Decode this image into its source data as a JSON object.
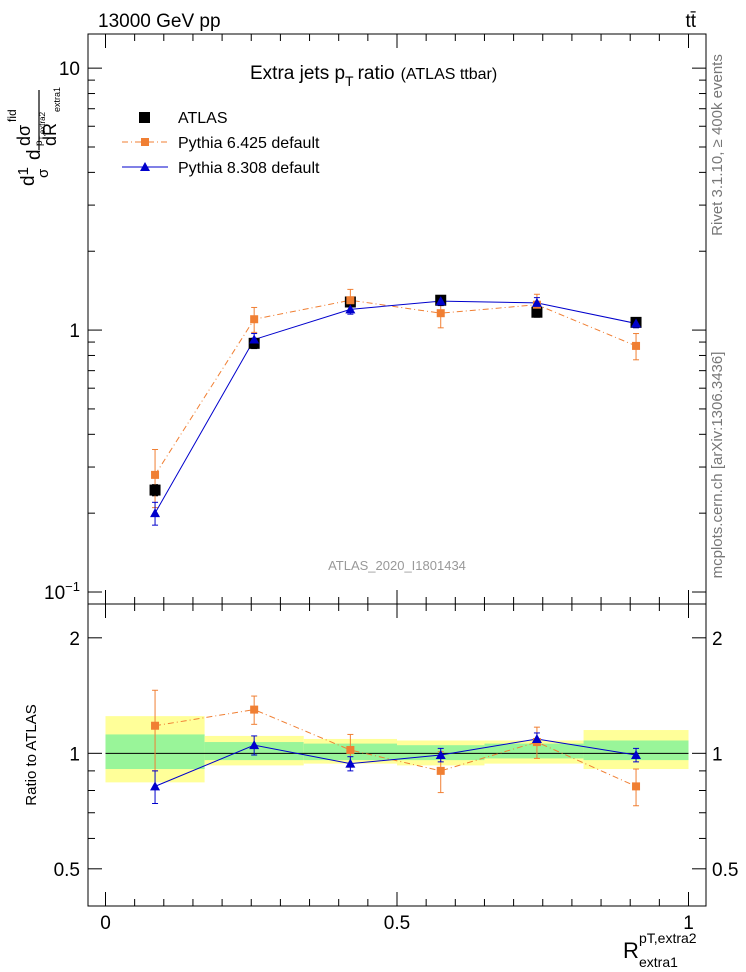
{
  "header": {
    "left": "13000 GeV pp",
    "right": "tt̄"
  },
  "side": {
    "rivet": "Rivet 3.1.10, ≥ 400k events",
    "mcplots": "mcplots.cern.ch [arXiv:1306.3436]"
  },
  "colors": {
    "atlas": "#000000",
    "pythia6": "#f07f33",
    "pythia8": "#0000cc",
    "band_inner": "#99f599",
    "band_outer": "#ffff99"
  },
  "chart_data": [
    {
      "type": "line",
      "panel": "main",
      "title": "Extra jets p T ratio",
      "title_parts": {
        "main": "Extra jets p",
        "sub": "T",
        "tail": "ratio",
        "note": "(ATLAS ttbar)"
      },
      "ylabel": "d1/σ dσ^fid / dp_T,extra2 dR_extra1",
      "ylabel_parts": {
        "frac_top_a": "d",
        "frac_top_b": "1",
        "frac_top_c": "d",
        "frac_top_d": "dσ",
        "sup": "fid",
        "sub_pt": "p",
        "sub_t": "T,extra2",
        "denom_a": "σ",
        "denom_b": "d",
        "denom_c": "dR",
        "denom_sub": "extra1"
      },
      "yscale": "log",
      "ylim": [
        0.09,
        13.5
      ],
      "xlim": [
        -0.03,
        1.03
      ],
      "yticks": [
        {
          "value": 10,
          "base": "10",
          "exp": ""
        },
        {
          "value": 1,
          "base": "1",
          "exp": ""
        },
        {
          "value": 0.1,
          "base": "10",
          "exp": "−1"
        }
      ],
      "watermark": "ATLAS_2020_I1801434",
      "legend_position": "top-left",
      "series": [
        {
          "name": "ATLAS",
          "marker": "square",
          "x": [
            0.085,
            0.255,
            0.42,
            0.575,
            0.74,
            0.91
          ],
          "y": [
            0.245,
            0.89,
            1.28,
            1.3,
            1.17,
            1.07
          ],
          "err": [
            0.012,
            0.04,
            0.04,
            0.04,
            0.05,
            0.04
          ]
        },
        {
          "name": "Pythia 6.425 default",
          "marker": "square",
          "x": [
            0.085,
            0.255,
            0.42,
            0.575,
            0.74,
            0.91
          ],
          "y": [
            0.28,
            1.1,
            1.3,
            1.16,
            1.25,
            0.87
          ],
          "err": [
            0.07,
            0.12,
            0.13,
            0.14,
            0.12,
            0.1
          ]
        },
        {
          "name": "Pythia 8.308 default",
          "marker": "triangle",
          "x": [
            0.085,
            0.255,
            0.42,
            0.575,
            0.74,
            0.91
          ],
          "y": [
            0.2,
            0.92,
            1.2,
            1.29,
            1.27,
            1.06
          ],
          "err": [
            0.02,
            0.05,
            0.05,
            0.05,
            0.06,
            0.04
          ]
        }
      ]
    },
    {
      "type": "line",
      "panel": "ratio",
      "ylabel": "Ratio to ATLAS",
      "xlabel": "R",
      "xlabel_parts": {
        "base": "R",
        "sup": "pT,extra2",
        "sub": "extra1"
      },
      "yscale": "log",
      "ylim": [
        0.4,
        2.45
      ],
      "xlim": [
        -0.03,
        1.03
      ],
      "xticks": [
        {
          "value": 0,
          "label": "0"
        },
        {
          "value": 0.5,
          "label": "0.5"
        },
        {
          "value": 1,
          "label": "1"
        }
      ],
      "yticks": [
        {
          "value": 2,
          "label": "2"
        },
        {
          "value": 1,
          "label": "1"
        },
        {
          "value": 0.5,
          "label": "0.5"
        }
      ],
      "bands": [
        {
          "x0": 0.0,
          "x1": 0.17,
          "inner": [
            0.91,
            1.12
          ],
          "outer": [
            0.84,
            1.25
          ]
        },
        {
          "x0": 0.17,
          "x1": 0.34,
          "inner": [
            0.96,
            1.07
          ],
          "outer": [
            0.93,
            1.11
          ]
        },
        {
          "x0": 0.34,
          "x1": 0.5,
          "inner": [
            0.96,
            1.06
          ],
          "outer": [
            0.94,
            1.09
          ]
        },
        {
          "x0": 0.5,
          "x1": 0.65,
          "inner": [
            0.96,
            1.05
          ],
          "outer": [
            0.93,
            1.08
          ]
        },
        {
          "x0": 0.65,
          "x1": 0.82,
          "inner": [
            0.97,
            1.06
          ],
          "outer": [
            0.94,
            1.08
          ]
        },
        {
          "x0": 0.82,
          "x1": 1.0,
          "inner": [
            0.96,
            1.08
          ],
          "outer": [
            0.91,
            1.15
          ]
        }
      ],
      "series": [
        {
          "name": "Pythia 6.425 default",
          "x": [
            0.085,
            0.255,
            0.42,
            0.575,
            0.74,
            0.91
          ],
          "y": [
            1.18,
            1.3,
            1.02,
            0.9,
            1.07,
            0.82
          ],
          "err": [
            0.28,
            0.11,
            0.1,
            0.11,
            0.1,
            0.09
          ]
        },
        {
          "name": "Pythia 8.308 default",
          "x": [
            0.085,
            0.255,
            0.42,
            0.575,
            0.74,
            0.91
          ],
          "y": [
            0.82,
            1.05,
            0.94,
            0.99,
            1.09,
            0.99
          ],
          "err": [
            0.08,
            0.06,
            0.04,
            0.04,
            0.04,
            0.04
          ]
        }
      ]
    }
  ]
}
